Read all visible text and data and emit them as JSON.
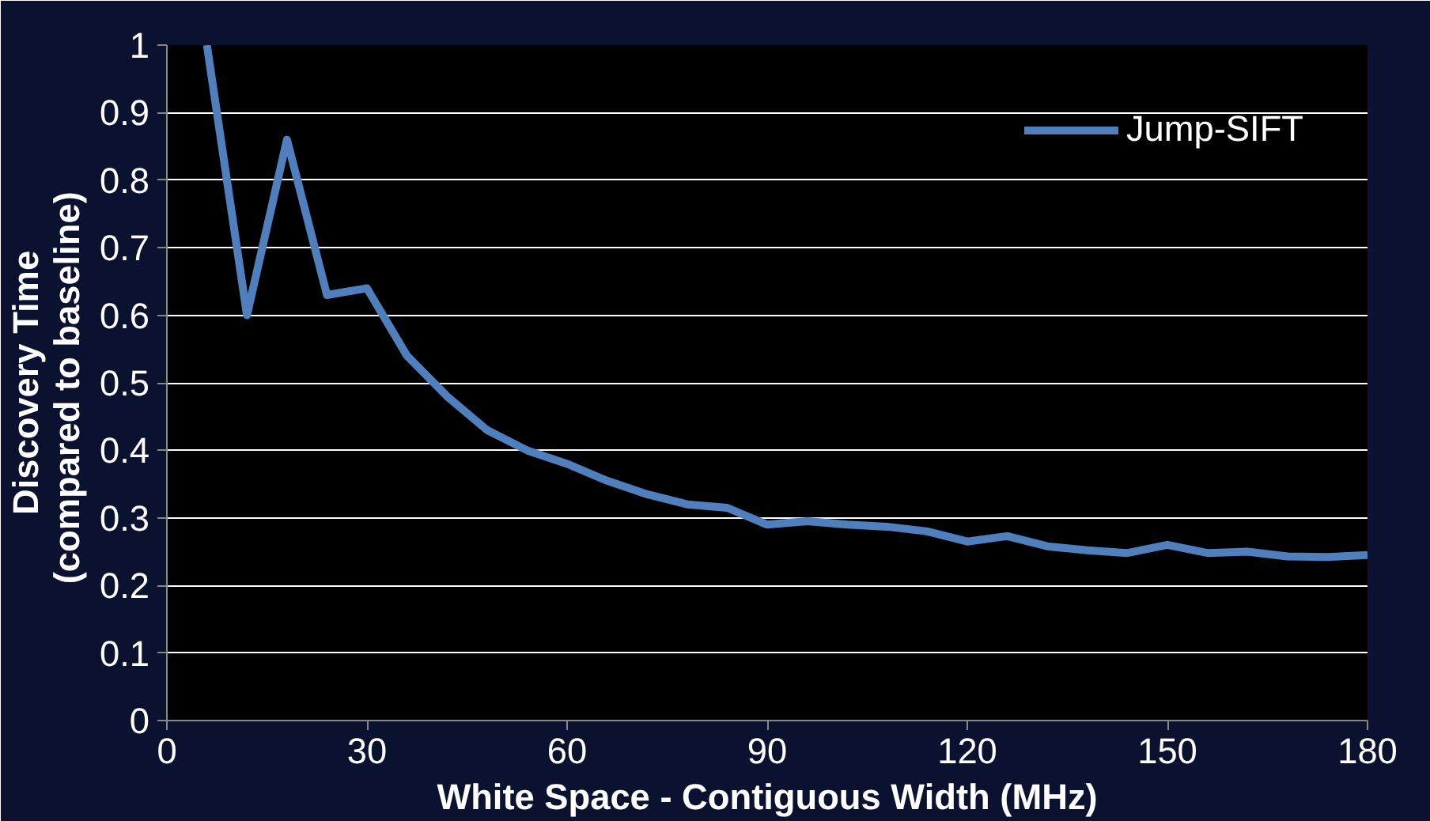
{
  "chart_data": {
    "type": "line",
    "xlabel": "White Space - Contiguous Width (MHz)",
    "ylabel": "Discovery Time\n(compared to  baseline)",
    "x": [
      6,
      12,
      18,
      24,
      30,
      36,
      42,
      48,
      54,
      60,
      66,
      72,
      78,
      84,
      90,
      96,
      102,
      108,
      114,
      120,
      126,
      132,
      138,
      144,
      150,
      156,
      162,
      168,
      174,
      180
    ],
    "series": [
      {
        "name": "Jump-SIFT",
        "color": "#4f7fbc",
        "values": [
          1.0,
          0.6,
          0.86,
          0.63,
          0.64,
          0.54,
          0.48,
          0.43,
          0.4,
          0.38,
          0.355,
          0.335,
          0.32,
          0.315,
          0.29,
          0.295,
          0.29,
          0.287,
          0.28,
          0.265,
          0.273,
          0.258,
          0.252,
          0.248,
          0.26,
          0.248,
          0.25,
          0.243,
          0.242,
          0.245
        ]
      }
    ],
    "xlim": [
      0,
      180
    ],
    "xticks": [
      0,
      30,
      60,
      90,
      120,
      150,
      180
    ],
    "ylim": [
      0,
      1
    ],
    "yticks": [
      0,
      0.1,
      0.2,
      0.3,
      0.4,
      0.5,
      0.6,
      0.7,
      0.8,
      0.9,
      1
    ],
    "grid": "y",
    "legend": "top right",
    "marker": "none",
    "line_style": "solid"
  }
}
